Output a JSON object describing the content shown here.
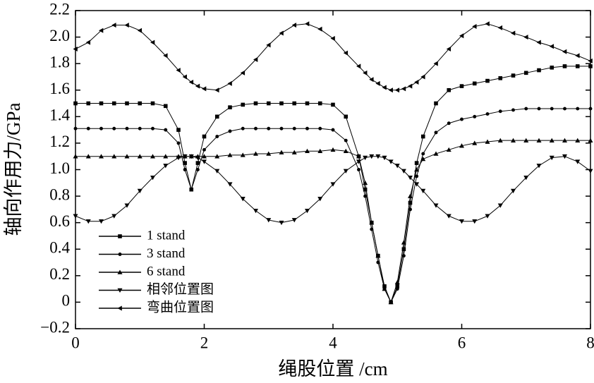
{
  "chart_data": {
    "type": "line",
    "x_label": "绳股位置 /cm",
    "y_label": "轴向作用力/GPa",
    "x": [
      0,
      0.2,
      0.4,
      0.6,
      0.8,
      1.0,
      1.2,
      1.4,
      1.6,
      1.7,
      1.8,
      1.9,
      2.0,
      2.2,
      2.4,
      2.6,
      2.8,
      3.0,
      3.2,
      3.4,
      3.6,
      3.8,
      4.0,
      4.2,
      4.4,
      4.5,
      4.6,
      4.7,
      4.8,
      4.9,
      5.0,
      5.1,
      5.2,
      5.3,
      5.4,
      5.6,
      5.8,
      6.0,
      6.2,
      6.4,
      6.6,
      6.8,
      7.0,
      7.2,
      7.4,
      7.6,
      7.8,
      8.0
    ],
    "series": [
      {
        "name": "1 stand",
        "color": "#000000",
        "marker": "square",
        "values": [
          1.5,
          1.5,
          1.5,
          1.5,
          1.5,
          1.5,
          1.5,
          1.48,
          1.3,
          1.05,
          0.85,
          1.05,
          1.25,
          1.4,
          1.47,
          1.49,
          1.5,
          1.5,
          1.5,
          1.5,
          1.5,
          1.5,
          1.49,
          1.4,
          1.1,
          0.85,
          0.6,
          0.35,
          0.12,
          0,
          0.12,
          0.4,
          0.75,
          1.05,
          1.25,
          1.5,
          1.6,
          1.63,
          1.65,
          1.67,
          1.69,
          1.71,
          1.73,
          1.75,
          1.77,
          1.78,
          1.78,
          1.78
        ]
      },
      {
        "name": "3 stand",
        "color": "#000000",
        "marker": "circle",
        "values": [
          1.31,
          1.31,
          1.31,
          1.31,
          1.31,
          1.31,
          1.31,
          1.3,
          1.2,
          1.0,
          0.85,
          1.0,
          1.15,
          1.25,
          1.29,
          1.31,
          1.31,
          1.31,
          1.31,
          1.31,
          1.31,
          1.31,
          1.3,
          1.22,
          1.0,
          0.8,
          0.55,
          0.3,
          0.1,
          0,
          0.1,
          0.35,
          0.7,
          0.95,
          1.12,
          1.28,
          1.35,
          1.38,
          1.4,
          1.42,
          1.44,
          1.45,
          1.46,
          1.46,
          1.46,
          1.46,
          1.46,
          1.46
        ]
      },
      {
        "name": "6 stand",
        "color": "#000000",
        "marker": "triangle-up",
        "values": [
          1.1,
          1.1,
          1.1,
          1.1,
          1.1,
          1.1,
          1.1,
          1.1,
          1.1,
          1.1,
          1.1,
          1.1,
          1.1,
          1.1,
          1.11,
          1.11,
          1.12,
          1.12,
          1.13,
          1.13,
          1.14,
          1.14,
          1.15,
          1.14,
          1.1,
          0.9,
          0.6,
          0.35,
          0.1,
          0,
          0.15,
          0.45,
          0.8,
          1.0,
          1.08,
          1.12,
          1.15,
          1.18,
          1.2,
          1.21,
          1.22,
          1.22,
          1.22,
          1.22,
          1.22,
          1.22,
          1.22,
          1.22
        ]
      },
      {
        "name": "相邻位置图",
        "color": "#000000",
        "marker": "triangle-down",
        "values": [
          0.65,
          0.61,
          0.61,
          0.65,
          0.73,
          0.84,
          0.94,
          1.03,
          1.09,
          1.1,
          1.1,
          1.09,
          1.06,
          0.99,
          0.89,
          0.78,
          0.69,
          0.62,
          0.6,
          0.62,
          0.69,
          0.78,
          0.89,
          0.99,
          1.06,
          1.09,
          1.1,
          1.1,
          1.09,
          1.06,
          1.03,
          0.99,
          0.94,
          0.89,
          0.84,
          0.73,
          0.65,
          0.61,
          0.61,
          0.65,
          0.73,
          0.84,
          0.94,
          1.03,
          1.09,
          1.1,
          1.06,
          0.99
        ]
      },
      {
        "name": "弯曲位置图",
        "color": "#000000",
        "marker": "triangle-left",
        "values": [
          1.91,
          1.96,
          2.05,
          2.09,
          2.09,
          2.05,
          1.96,
          1.86,
          1.75,
          1.7,
          1.66,
          1.63,
          1.61,
          1.6,
          1.65,
          1.73,
          1.83,
          1.94,
          2.03,
          2.09,
          2.1,
          2.06,
          1.99,
          1.88,
          1.78,
          1.73,
          1.68,
          1.65,
          1.62,
          1.6,
          1.6,
          1.61,
          1.63,
          1.66,
          1.7,
          1.8,
          1.91,
          2.01,
          2.08,
          2.1,
          2.07,
          2.03,
          2.0,
          1.96,
          1.93,
          1.89,
          1.86,
          1.82
        ]
      }
    ],
    "xlim": [
      0,
      8
    ],
    "xticks": [
      0,
      2,
      4,
      6,
      8
    ],
    "ylim": [
      -0.2,
      2.2
    ],
    "yticks": [
      {
        "value": -0.2,
        "label": "−0.2"
      },
      0,
      0.2,
      0.4,
      0.6,
      0.8,
      {
        "value": 1,
        "label": "1.0"
      },
      1.2,
      1.4,
      1.6,
      1.8,
      {
        "value": 2,
        "label": "2.0"
      },
      2.2
    ],
    "legend": "lower left",
    "grid": false
  }
}
